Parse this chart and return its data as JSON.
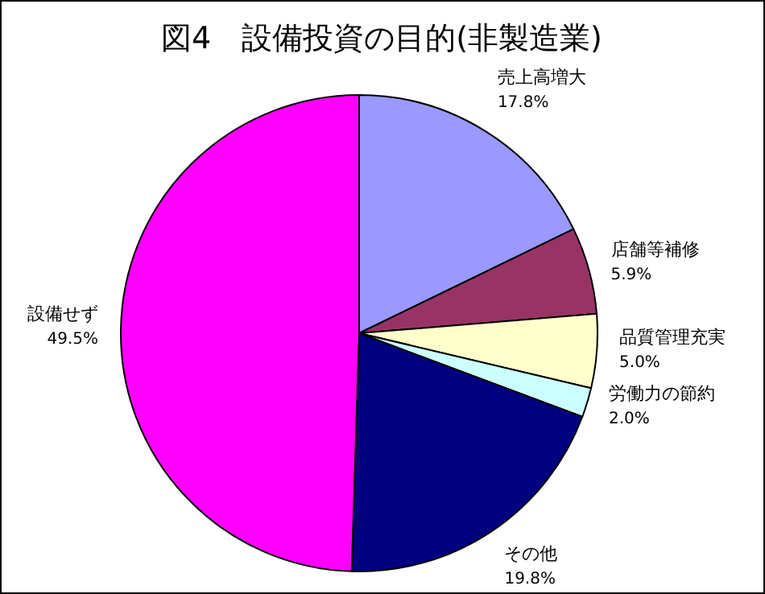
{
  "chart_data": {
    "type": "pie",
    "title": "図4　設備投資の目的(非製造業)",
    "categories": [
      "売上高増大",
      "店舗等補修",
      "品質管理充実",
      "労働力の節約",
      "その他",
      "設備せず"
    ],
    "values": [
      17.8,
      5.9,
      5.0,
      2.0,
      19.8,
      49.5
    ],
    "value_labels": [
      "17.8%",
      "5.9%",
      "5.0%",
      "2.0%",
      "19.8%",
      "49.5%"
    ],
    "colors": [
      "#9999ff",
      "#993366",
      "#ffffcc",
      "#ccffff",
      "#000080",
      "#ff00ff"
    ]
  }
}
